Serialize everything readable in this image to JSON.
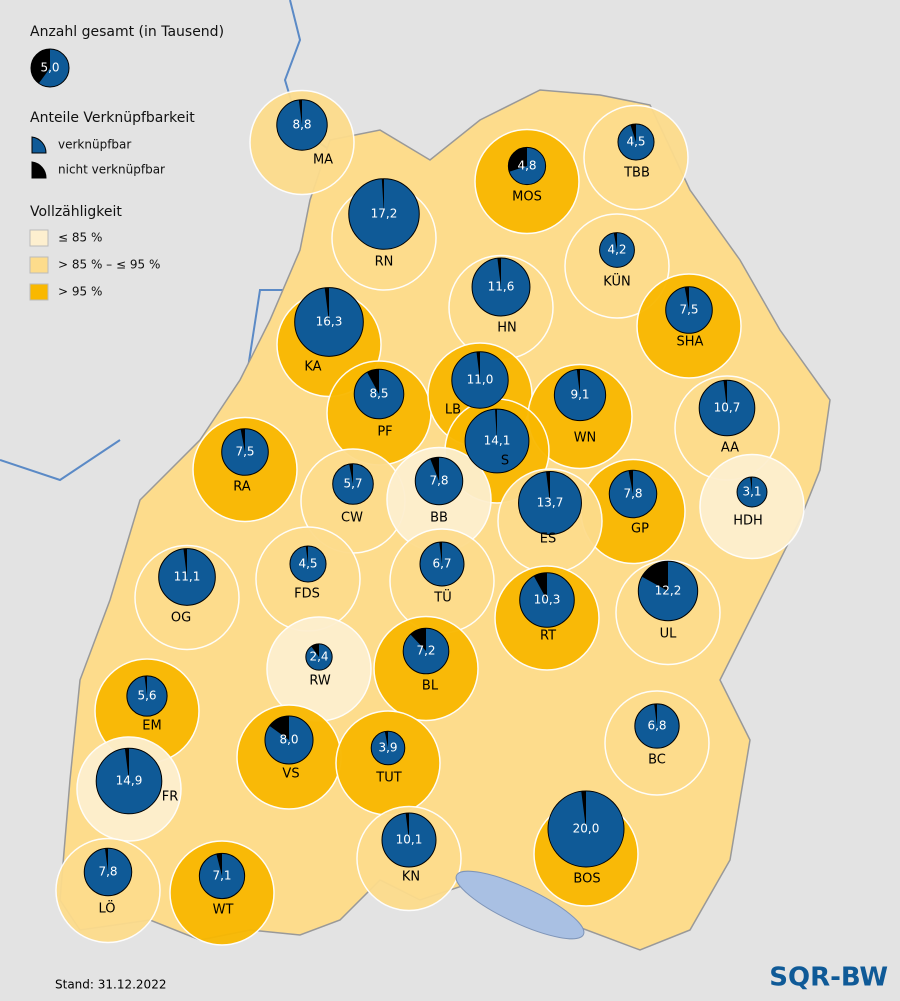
{
  "legend": {
    "size_title": "Anzahl gesamt (in Tausend)",
    "size_sample": {
      "value": 5,
      "label": "5,0",
      "nonlinkable_share": 40
    },
    "share_title": "Anteile Verknüpfbarkeit",
    "shares": [
      {
        "label": "verknüpfbar",
        "color": "#0f5a97"
      },
      {
        "label": "nicht verknüpfbar",
        "color": "#000000"
      }
    ],
    "completeness_title": "Vollzähligkeit",
    "classes": [
      {
        "label": "≤ 85 %",
        "color": "#fdefcf"
      },
      {
        "label": "> 85 % – ≤ 95 %",
        "color": "#fddc8c"
      },
      {
        "label": "> 95 %",
        "color": "#f9b800"
      }
    ]
  },
  "regions": [
    {
      "label": "MA",
      "total": {
        "value": 8.8,
        "label": "8,8"
      },
      "nonlinkable_share": 2,
      "completeness": 1
    },
    {
      "label": "RN",
      "total": {
        "value": 17.2,
        "label": "17,2"
      },
      "nonlinkable_share": 1,
      "completeness": 1
    },
    {
      "label": "MOS",
      "total": {
        "value": 4.8,
        "label": "4,8"
      },
      "nonlinkable_share": 30,
      "completeness": 2
    },
    {
      "label": "TBB",
      "total": {
        "value": 4.5,
        "label": "4,5"
      },
      "nonlinkable_share": 5,
      "completeness": 1
    },
    {
      "label": "KÜN",
      "total": {
        "value": 4.2,
        "label": "4,2"
      },
      "nonlinkable_share": 3,
      "completeness": 1
    },
    {
      "label": "HN",
      "total": {
        "value": 11.6,
        "label": "11,6"
      },
      "nonlinkable_share": 2,
      "completeness": 1
    },
    {
      "label": "KA",
      "total": {
        "value": 16.3,
        "label": "16,3"
      },
      "nonlinkable_share": 2,
      "completeness": 2
    },
    {
      "label": "SHA",
      "total": {
        "value": 7.5,
        "label": "7,5"
      },
      "nonlinkable_share": 3,
      "completeness": 2
    },
    {
      "label": "PF",
      "total": {
        "value": 8.5,
        "label": "8,5"
      },
      "nonlinkable_share": 8,
      "completeness": 2
    },
    {
      "label": "LB",
      "total": {
        "value": 11.0,
        "label": "11,0"
      },
      "nonlinkable_share": 2,
      "completeness": 2
    },
    {
      "label": "WN",
      "total": {
        "value": 9.1,
        "label": "9,1"
      },
      "nonlinkable_share": 2,
      "completeness": 2
    },
    {
      "label": "AA",
      "total": {
        "value": 10.7,
        "label": "10,7"
      },
      "nonlinkable_share": 2,
      "completeness": 1
    },
    {
      "label": "S",
      "total": {
        "value": 14.1,
        "label": "14,1"
      },
      "nonlinkable_share": 1,
      "completeness": 2
    },
    {
      "label": "RA",
      "total": {
        "value": 7.5,
        "label": "7,5"
      },
      "nonlinkable_share": 3,
      "completeness": 2
    },
    {
      "label": "CW",
      "total": {
        "value": 5.7,
        "label": "5,7"
      },
      "nonlinkable_share": 3,
      "completeness": 1
    },
    {
      "label": "BB",
      "total": {
        "value": 7.8,
        "label": "7,8"
      },
      "nonlinkable_share": 6,
      "completeness": 0
    },
    {
      "label": "HDH",
      "total": {
        "value": 3.1,
        "label": "3,1"
      },
      "nonlinkable_share": 2,
      "completeness": 0
    },
    {
      "label": "GP",
      "total": {
        "value": 7.8,
        "label": "7,8"
      },
      "nonlinkable_share": 3,
      "completeness": 2
    },
    {
      "label": "ES",
      "total": {
        "value": 13.7,
        "label": "13,7"
      },
      "nonlinkable_share": 2,
      "completeness": 1
    },
    {
      "label": "OG",
      "total": {
        "value": 11.1,
        "label": "11,1"
      },
      "nonlinkable_share": 2,
      "completeness": 1
    },
    {
      "label": "FDS",
      "total": {
        "value": 4.5,
        "label": "4,5"
      },
      "nonlinkable_share": 2,
      "completeness": 1
    },
    {
      "label": "TÜ",
      "total": {
        "value": 6.7,
        "label": "6,7"
      },
      "nonlinkable_share": 2,
      "completeness": 1
    },
    {
      "label": "RT",
      "total": {
        "value": 10.3,
        "label": "10,3"
      },
      "nonlinkable_share": 8,
      "completeness": 2
    },
    {
      "label": "UL",
      "total": {
        "value": 12.2,
        "label": "12,2"
      },
      "nonlinkable_share": 17,
      "completeness": 1
    },
    {
      "label": "RW",
      "total": {
        "value": 2.4,
        "label": "2,4"
      },
      "nonlinkable_share": 10,
      "completeness": 0
    },
    {
      "label": "BL",
      "total": {
        "value": 7.2,
        "label": "7,2"
      },
      "nonlinkable_share": 12,
      "completeness": 2
    },
    {
      "label": "EM",
      "total": {
        "value": 5.6,
        "label": "5,6"
      },
      "nonlinkable_share": 2,
      "completeness": 2
    },
    {
      "label": "VS",
      "total": {
        "value": 8.0,
        "label": "8,0"
      },
      "nonlinkable_share": 15,
      "completeness": 2
    },
    {
      "label": "TUT",
      "total": {
        "value": 3.9,
        "label": "3,9"
      },
      "nonlinkable_share": 3,
      "completeness": 2
    },
    {
      "label": "BC",
      "total": {
        "value": 6.8,
        "label": "6,8"
      },
      "nonlinkable_share": 2,
      "completeness": 1
    },
    {
      "label": "FR",
      "total": {
        "value": 14.9,
        "label": "14,9"
      },
      "nonlinkable_share": 2,
      "completeness": 0
    },
    {
      "label": "BOS",
      "total": {
        "value": 20.0,
        "label": "20,0"
      },
      "nonlinkable_share": 2,
      "completeness": 2
    },
    {
      "label": "KN",
      "total": {
        "value": 10.1,
        "label": "10,1"
      },
      "nonlinkable_share": 2,
      "completeness": 1
    },
    {
      "label": "LÖ",
      "total": {
        "value": 7.8,
        "label": "7,8"
      },
      "nonlinkable_share": 2,
      "completeness": 1
    },
    {
      "label": "WT",
      "total": {
        "value": 7.1,
        "label": "7,1"
      },
      "nonlinkable_share": 4,
      "completeness": 2
    }
  ],
  "footer": {
    "date": "Stand: 31.12.2022",
    "logo": "SQR-BW"
  }
}
